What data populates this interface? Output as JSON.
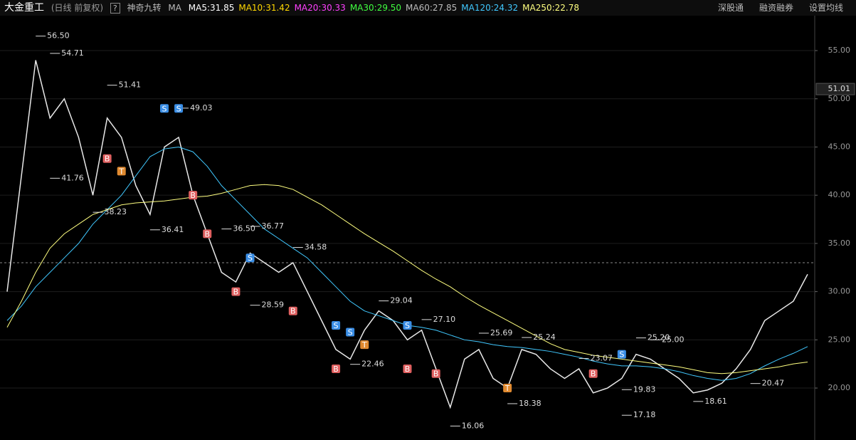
{
  "header": {
    "stock": "大金重工",
    "period": "(日线 前复权)",
    "help": "?",
    "indicator": "神奇九转",
    "ma_title": "MA",
    "ma": [
      {
        "label": "MA5:31.85",
        "color": "#ffffff"
      },
      {
        "label": "MA10:31.42",
        "color": "#ffd700"
      },
      {
        "label": "MA20:30.33",
        "color": "#ff40ff"
      },
      {
        "label": "MA30:29.50",
        "color": "#40ff40"
      },
      {
        "label": "MA60:27.85",
        "color": "#bbbbbb"
      },
      {
        "label": "MA120:24.32",
        "color": "#40c8ff"
      },
      {
        "label": "MA250:22.78",
        "color": "#ffff80"
      }
    ],
    "buttons": [
      "深股通",
      "融资融券",
      "设置均线"
    ]
  },
  "chart_data": {
    "type": "line",
    "categories": [
      null,
      null,
      null,
      null,
      null,
      null,
      null,
      null,
      null,
      null,
      null,
      null,
      null,
      null,
      null,
      null,
      null,
      null,
      null,
      null,
      null,
      null,
      null,
      null,
      null,
      null,
      null,
      null,
      null,
      null,
      null,
      null,
      null,
      null,
      null,
      null,
      null,
      null,
      null,
      null,
      null,
      null,
      null,
      null,
      null,
      null,
      null,
      null,
      null,
      null,
      null,
      null,
      null,
      null,
      null,
      null,
      null
    ],
    "series": [
      {
        "color": "#e8e8e8",
        "values": [
          30,
          42,
          54,
          48,
          50,
          46,
          40,
          48,
          46,
          41,
          38,
          45,
          46,
          40,
          36,
          32,
          31,
          34,
          33,
          32,
          33,
          30,
          27,
          24,
          23,
          26,
          28,
          27,
          25,
          26,
          22,
          18,
          23,
          24,
          21,
          20,
          24,
          23.5,
          22,
          21,
          22,
          19.5,
          20,
          21,
          23.5,
          23,
          22,
          21,
          19.5,
          19.8,
          20.5,
          22,
          24,
          27,
          28,
          29,
          31.8
        ]
      },
      {
        "color": "#40c8ff",
        "values": [
          27,
          28.5,
          30.5,
          32,
          33.5,
          35,
          37,
          38.5,
          40,
          42,
          44,
          44.8,
          45,
          44.5,
          43,
          41,
          39.5,
          38,
          36.5,
          35.5,
          34.5,
          33.5,
          32,
          30.5,
          29,
          28,
          27.5,
          27,
          26.5,
          26.3,
          26,
          25.5,
          25,
          24.8,
          24.5,
          24.3,
          24.2,
          24,
          23.8,
          23.5,
          23.2,
          22.8,
          22.5,
          22.3,
          22.3,
          22.2,
          22,
          21.7,
          21.3,
          21,
          20.8,
          21,
          21.5,
          22.3,
          23,
          23.6,
          24.3
        ]
      },
      {
        "color": "#ffff80",
        "values": [
          26.3,
          29,
          32,
          34.5,
          36,
          37,
          38,
          38.5,
          39,
          39.2,
          39.3,
          39.4,
          39.6,
          39.8,
          39.9,
          40.2,
          40.6,
          41,
          41.1,
          41,
          40.6,
          39.8,
          39,
          38,
          37,
          36,
          35.1,
          34.2,
          33.2,
          32.2,
          31.3,
          30.5,
          29.5,
          28.6,
          27.8,
          27,
          26.2,
          25.4,
          24.6,
          24,
          23.7,
          23.4,
          23.2,
          23,
          22.8,
          22.6,
          22.4,
          22.2,
          21.9,
          21.6,
          21.5,
          21.6,
          21.8,
          22,
          22.2,
          22.5,
          22.7
        ]
      }
    ],
    "ylim": [
      15.35,
      58.4
    ],
    "yticks": [
      {
        "value": 20,
        "label": "20.00"
      },
      {
        "value": 25,
        "label": "25.00"
      },
      {
        "value": 30,
        "label": "30.00"
      },
      {
        "value": 35,
        "label": "35.00"
      },
      {
        "value": 40,
        "label": "40.00"
      },
      {
        "value": 45,
        "label": "45.00"
      },
      {
        "value": 50,
        "label": "50.00"
      },
      {
        "value": 55,
        "label": "55.00"
      }
    ],
    "grid": true,
    "reference_line": 33,
    "cursor": {
      "value": 51.01,
      "label": "51.01"
    },
    "annotations": [
      {
        "index": 2,
        "y": 56.5,
        "label": "56.50"
      },
      {
        "index": 3,
        "y": 54.71,
        "label": "54.71"
      },
      {
        "index": 7,
        "y": 51.41,
        "label": "51.41"
      },
      {
        "index": 3,
        "y": 41.76,
        "label": "41.76"
      },
      {
        "index": 6,
        "y": 38.23,
        "label": "38.23"
      },
      {
        "index": 10,
        "y": 36.41,
        "label": "36.41"
      },
      {
        "index": 12,
        "y": 49.03,
        "label": "49.03"
      },
      {
        "index": 15,
        "y": 36.5,
        "label": "36.50"
      },
      {
        "index": 17,
        "y": 36.77,
        "label": "36.77"
      },
      {
        "index": 20,
        "y": 34.58,
        "label": "34.58"
      },
      {
        "index": 17,
        "y": 28.59,
        "label": "28.59"
      },
      {
        "index": 26,
        "y": 29.04,
        "label": "29.04"
      },
      {
        "index": 29,
        "y": 27.1,
        "label": "27.10"
      },
      {
        "index": 24,
        "y": 22.46,
        "label": "22.46"
      },
      {
        "index": 31,
        "y": 16.06,
        "label": "16.06"
      },
      {
        "index": 33,
        "y": 25.69,
        "label": "25.69"
      },
      {
        "index": 35,
        "y": 18.38,
        "label": "18.38"
      },
      {
        "index": 36,
        "y": 25.24,
        "label": "25.24"
      },
      {
        "index": 40,
        "y": 23.07,
        "label": "23.07"
      },
      {
        "index": 43,
        "y": 17.18,
        "label": "17.18"
      },
      {
        "index": 43,
        "y": 19.83,
        "label": "19.83"
      },
      {
        "index": 44,
        "y": 25.2,
        "label": "25.20"
      },
      {
        "index": 45,
        "y": 25,
        "label": "25.00"
      },
      {
        "index": 48,
        "y": 18.61,
        "label": "18.61"
      },
      {
        "index": 52,
        "y": 20.47,
        "label": "20.47"
      }
    ],
    "signals": [
      {
        "index": 11,
        "y": 49,
        "label": "S",
        "color": "#3a8ee6"
      },
      {
        "index": 12,
        "y": 49,
        "label": "S",
        "color": "#3a8ee6"
      },
      {
        "index": 7,
        "y": 43.8,
        "label": "B",
        "color": "#e06060"
      },
      {
        "index": 8,
        "y": 42.5,
        "label": "T",
        "color": "#e08a30"
      },
      {
        "index": 13,
        "y": 40,
        "label": "B",
        "color": "#e06060"
      },
      {
        "index": 14,
        "y": 36,
        "label": "B",
        "color": "#e06060"
      },
      {
        "index": 16,
        "y": 30,
        "label": "B",
        "color": "#e06060"
      },
      {
        "index": 17,
        "y": 33.5,
        "label": "S",
        "color": "#3a8ee6"
      },
      {
        "index": 20,
        "y": 28,
        "label": "B",
        "color": "#e06060"
      },
      {
        "index": 23,
        "y": 26.5,
        "label": "S",
        "color": "#3a8ee6"
      },
      {
        "index": 24,
        "y": 25.8,
        "label": "S",
        "color": "#3a8ee6"
      },
      {
        "index": 23,
        "y": 22,
        "label": "B",
        "color": "#e06060"
      },
      {
        "index": 25,
        "y": 24.5,
        "label": "T",
        "color": "#e08a30"
      },
      {
        "index": 28,
        "y": 26.5,
        "label": "S",
        "color": "#3a8ee6"
      },
      {
        "index": 28,
        "y": 22,
        "label": "B",
        "color": "#e06060"
      },
      {
        "index": 30,
        "y": 21.5,
        "label": "B",
        "color": "#e06060"
      },
      {
        "index": 35,
        "y": 20,
        "label": "T",
        "color": "#e08a30"
      },
      {
        "index": 43,
        "y": 23.5,
        "label": "S",
        "color": "#3a8ee6"
      },
      {
        "index": 41,
        "y": 21.5,
        "label": "B",
        "color": "#e06060"
      }
    ]
  }
}
